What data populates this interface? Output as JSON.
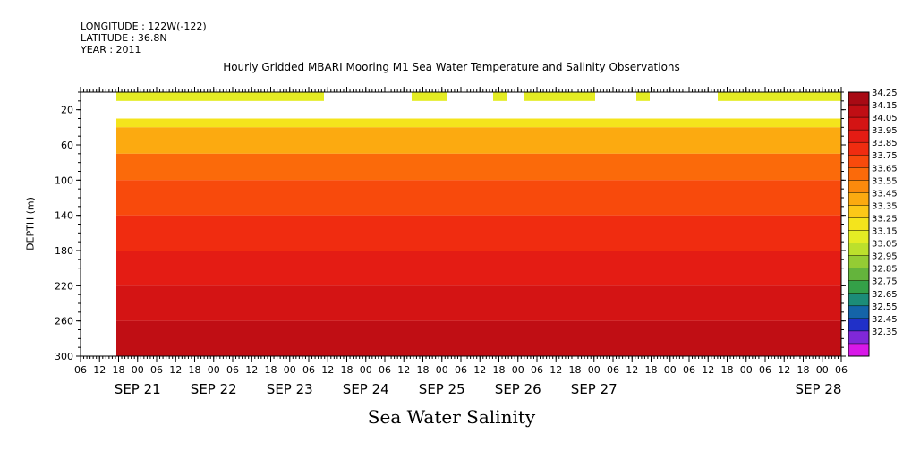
{
  "header": {
    "longitude": "LONGITUDE : 122W(-122)",
    "latitude": "LATITUDE : 36.8N",
    "year": "YEAR : 2011"
  },
  "chart_data": {
    "type": "heatmap",
    "title": "Hourly Gridded MBARI Mooring M1 Sea Water Temperature and Salinity Observations",
    "bottom_title": "Sea Water Salinity",
    "ylabel": "DEPTH (m)",
    "ylim": [
      300,
      0
    ],
    "y_ticks": [
      "20",
      "60",
      "100",
      "140",
      "180",
      "220",
      "260",
      "300"
    ],
    "y_tick_values": [
      20,
      60,
      100,
      140,
      180,
      220,
      260,
      300
    ],
    "x_hour_ticks": [
      "06",
      "12",
      "18",
      "00",
      "06",
      "12",
      "18",
      "00",
      "06",
      "12",
      "18",
      "00",
      "06",
      "12",
      "18",
      "00",
      "06",
      "12",
      "18",
      "00",
      "06",
      "12",
      "18",
      "00",
      "06",
      "12",
      "18",
      "00",
      "06",
      "12",
      "18",
      "00",
      "06",
      "12",
      "18",
      "00",
      "06",
      "12",
      "18",
      "00",
      "06"
    ],
    "x_date_labels": [
      "SEP 21",
      "SEP 22",
      "SEP 23",
      "SEP 24",
      "SEP 25",
      "SEP 26",
      "SEP 27",
      "SEP 28"
    ],
    "colorbar": {
      "levels": [
        "34.25",
        "34.15",
        "34.05",
        "33.95",
        "33.85",
        "33.75",
        "33.65",
        "33.55",
        "33.45",
        "33.35",
        "33.25",
        "33.15",
        "33.05",
        "32.95",
        "32.85",
        "32.75",
        "32.65",
        "32.55",
        "32.45",
        "32.35"
      ],
      "colors": [
        "#a80a14",
        "#c00e14",
        "#d41414",
        "#e41c14",
        "#f02c10",
        "#f84a0c",
        "#fb6a0a",
        "#fc8a0c",
        "#fcaa10",
        "#fcc818",
        "#f4e41c",
        "#e4ec24",
        "#bce02c",
        "#94cc34",
        "#64b43c",
        "#34a048",
        "#1c8c78",
        "#1464a8",
        "#2030c8",
        "#8028d8",
        "#d818e8"
      ]
    },
    "depth_bands": [
      {
        "depth_from": 30,
        "depth_to": 40,
        "value": 33.35
      },
      {
        "depth_from": 40,
        "depth_to": 70,
        "value": 33.5
      },
      {
        "depth_from": 70,
        "depth_to": 100,
        "value": 33.7
      },
      {
        "depth_from": 100,
        "depth_to": 140,
        "value": 33.85
      },
      {
        "depth_from": 140,
        "depth_to": 180,
        "value": 33.95
      },
      {
        "depth_from": 180,
        "depth_to": 220,
        "value": 34.05
      },
      {
        "depth_from": 220,
        "depth_to": 260,
        "value": 34.15
      },
      {
        "depth_from": 260,
        "depth_to": 300,
        "value": 34.2
      }
    ],
    "surface_value": 33.2,
    "grid": false
  }
}
